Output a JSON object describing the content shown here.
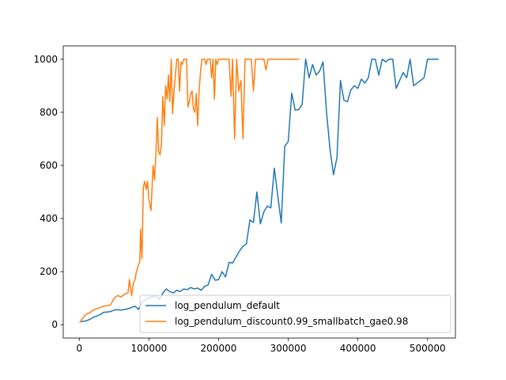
{
  "chart_data": {
    "type": "line",
    "title": "",
    "xlabel": "",
    "ylabel": "",
    "xlim": [
      -23000,
      540000
    ],
    "ylim": [
      -50,
      1050
    ],
    "xticks": [
      0,
      100000,
      200000,
      300000,
      400000,
      500000
    ],
    "yticks": [
      0,
      200,
      400,
      600,
      800,
      1000
    ],
    "grid": false,
    "legend": "lower-right",
    "series": [
      {
        "name": "log_pendulum_default",
        "color": "#1f77b4",
        "x": [
          3000,
          10000,
          15000,
          20000,
          25000,
          30000,
          35000,
          40000,
          45000,
          50000,
          55000,
          60000,
          65000,
          70000,
          75000,
          80000,
          85000,
          90000,
          95000,
          100000,
          110000,
          115000,
          120000,
          125000,
          130000,
          135000,
          140000,
          145000,
          150000,
          155000,
          160000,
          165000,
          170000,
          175000,
          180000,
          185000,
          190000,
          195000,
          200000,
          205000,
          210000,
          215000,
          220000,
          225000,
          230000,
          235000,
          240000,
          245000,
          250000,
          255000,
          260000,
          265000,
          270000,
          275000,
          280000,
          285000,
          290000,
          295000,
          300000,
          305000,
          310000,
          315000,
          320000,
          325000,
          330000,
          335000,
          340000,
          345000,
          350000,
          355000,
          360000,
          365000,
          370000,
          375000,
          380000,
          385000,
          390000,
          395000,
          400000,
          405000,
          410000,
          415000,
          420000,
          425000,
          430000,
          435000,
          440000,
          445000,
          450000,
          455000,
          460000,
          465000,
          470000,
          475000,
          480000,
          485000,
          490000,
          495000,
          500000,
          505000,
          510000,
          515000
        ],
        "y": [
          12,
          15,
          20,
          28,
          33,
          38,
          47,
          48,
          50,
          55,
          57,
          55,
          58,
          60,
          65,
          70,
          58,
          85,
          95,
          102,
          110,
          95,
          120,
          135,
          125,
          120,
          130,
          125,
          135,
          132,
          140,
          135,
          138,
          130,
          145,
          150,
          190,
          168,
          170,
          200,
          180,
          235,
          232,
          255,
          278,
          295,
          305,
          395,
          385,
          500,
          380,
          425,
          447,
          440,
          590,
          485,
          383,
          672,
          690,
          872,
          808,
          810,
          830,
          1000,
          930,
          980,
          940,
          955,
          990,
          800,
          660,
          565,
          630,
          920,
          845,
          840,
          885,
          900,
          890,
          925,
          910,
          930,
          1000,
          1000,
          940,
          1000,
          990,
          1000,
          1000,
          890,
          920,
          950,
          930,
          1000,
          900,
          910,
          920,
          930,
          1000,
          1000,
          1000,
          1000
        ]
      },
      {
        "name": "log_pendulum_discount0.99_smallbatch_gae0.98",
        "color": "#ff7f0e",
        "x": [
          1000,
          5000,
          10000,
          15000,
          20000,
          25000,
          30000,
          35000,
          40000,
          45000,
          50000,
          55000,
          60000,
          65000,
          70000,
          72000,
          75000,
          78000,
          80000,
          82000,
          85000,
          87000,
          88000,
          90000,
          92000,
          94000,
          96000,
          98000,
          100000,
          103000,
          106000,
          108000,
          110000,
          112000,
          114000,
          116000,
          118000,
          120000,
          122000,
          124000,
          126000,
          128000,
          130000,
          132000,
          134000,
          136000,
          138000,
          140000,
          142000,
          144000,
          146000,
          148000,
          150000,
          152000,
          154000,
          156000,
          158000,
          160000,
          162000,
          164000,
          166000,
          168000,
          170000,
          172000,
          174000,
          176000,
          178000,
          180000,
          182000,
          184000,
          186000,
          188000,
          190000,
          192000,
          194000,
          196000,
          198000,
          200000,
          205000,
          210000,
          215000,
          218000,
          220000,
          223000,
          226000,
          229000,
          232000,
          235000,
          238000,
          241000,
          244000,
          247000,
          250000,
          253000,
          256000,
          259000,
          262000,
          265000,
          268000,
          271000,
          274000,
          277000,
          280000,
          282000,
          285000,
          288000,
          291000,
          294000,
          297000,
          300000,
          303000,
          306000,
          310000,
          315000
        ],
        "y": [
          10,
          25,
          40,
          45,
          55,
          60,
          65,
          70,
          72,
          75,
          100,
          110,
          105,
          115,
          120,
          170,
          110,
          160,
          170,
          200,
          225,
          240,
          360,
          250,
          520,
          540,
          510,
          540,
          470,
          430,
          600,
          545,
          640,
          780,
          650,
          640,
          680,
          860,
          750,
          900,
          850,
          940,
          840,
          1000,
          795,
          880,
          940,
          1000,
          1000,
          880,
          990,
          980,
          1000,
          1000,
          1000,
          820,
          840,
          870,
          880,
          810,
          800,
          870,
          750,
          880,
          950,
          1000,
          1000,
          1000,
          980,
          1000,
          1000,
          1000,
          930,
          1000,
          850,
          1000,
          980,
          1000,
          1000,
          1000,
          1000,
          860,
          1000,
          700,
          1000,
          880,
          920,
          700,
          1000,
          1000,
          1000,
          1000,
          880,
          1000,
          1000,
          1000,
          1000,
          1000,
          960,
          1000,
          1000,
          1000,
          1000,
          1000,
          1000,
          1000,
          1000,
          1000,
          1000,
          1000,
          1000,
          1000,
          1000,
          1000
        ]
      }
    ]
  }
}
